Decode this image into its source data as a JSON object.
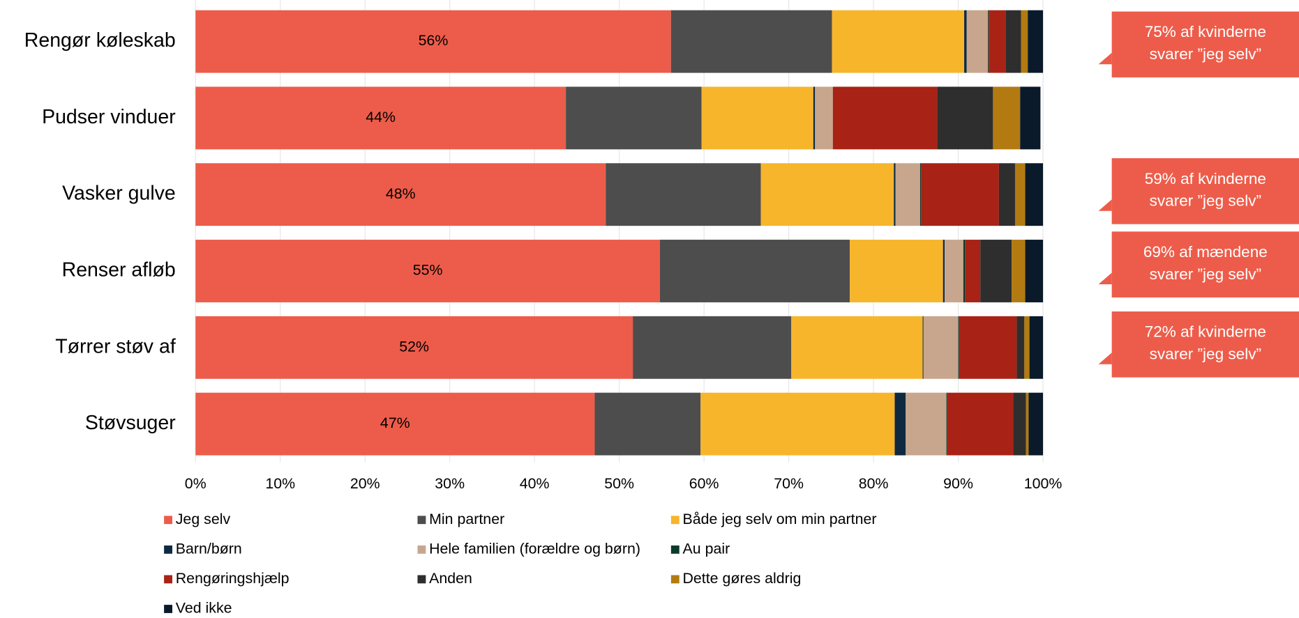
{
  "chart_data": {
    "type": "stacked-bar-horizontal",
    "categories": [
      "Rengør køleskab",
      "Pudser vinduer",
      "Vasker gulve",
      "Renser afløb",
      "Tørrer støv af",
      "Støvsuger"
    ],
    "series": [
      {
        "name": "Jeg selv",
        "color": "#ed5c4a",
        "values": [
          56.1,
          43.7,
          48.4,
          54.8,
          51.6,
          47.1
        ],
        "value_labels": [
          "56%",
          "44%",
          "48%",
          "55%",
          "52%",
          "47%"
        ]
      },
      {
        "name": "Min partner",
        "color": "#4d4d4d",
        "values": [
          19,
          16,
          18.3,
          22.4,
          18.7,
          12.5
        ]
      },
      {
        "name": "Både jeg selv om min partner",
        "color": "#f7b52c",
        "values": [
          15.6,
          13.2,
          15.7,
          11,
          15.5,
          22.9
        ]
      },
      {
        "name": "Barn/børn",
        "color": "#0f2a40",
        "values": [
          0.3,
          0.2,
          0.2,
          0.2,
          0.1,
          1.3
        ]
      },
      {
        "name": "Hele familien (forældre og børn)",
        "color": "#c8a68e",
        "values": [
          2.5,
          2.1,
          2.9,
          2.2,
          4.1,
          4.8
        ]
      },
      {
        "name": "Au pair",
        "color": "#0c3b2e",
        "values": [
          0.1,
          0,
          0.1,
          0.2,
          0.1,
          0.1
        ]
      },
      {
        "name": "Rengøringshjælp",
        "color": "#a82315",
        "values": [
          2,
          12.3,
          9.2,
          1.8,
          6.8,
          7.8
        ]
      },
      {
        "name": "Anden",
        "color": "#2e2e2e",
        "values": [
          1.8,
          6.6,
          1.9,
          3.7,
          0.9,
          1.5
        ]
      },
      {
        "name": "Dette gøres aldrig",
        "color": "#b27a10",
        "values": [
          0.8,
          3.2,
          1.2,
          1.6,
          0.6,
          0.3
        ]
      },
      {
        "name": "Ved ikke",
        "color": "#0a1a2a",
        "values": [
          1.8,
          2.4,
          2.1,
          2.1,
          1.6,
          1.7
        ]
      }
    ],
    "xlim": [
      0,
      100
    ],
    "xticks": [
      {
        "value": 0,
        "label": "0%"
      },
      {
        "value": 10,
        "label": "10%"
      },
      {
        "value": 20,
        "label": "20%"
      },
      {
        "value": 30,
        "label": "30%"
      },
      {
        "value": 40,
        "label": "40%"
      },
      {
        "value": 50,
        "label": "50%"
      },
      {
        "value": 60,
        "label": "60%"
      },
      {
        "value": 70,
        "label": "70%"
      },
      {
        "value": 80,
        "label": "80%"
      },
      {
        "value": 90,
        "label": "90%"
      },
      {
        "value": 100,
        "label": "100%"
      }
    ],
    "grid": true,
    "annotations": [
      {
        "lines": [
          "75% af kvinderne",
          "svarer ”jeg selv”"
        ],
        "color": "#ed5c4a"
      },
      {
        "lines": [
          "59% af kvinderne",
          "svarer ”jeg selv”"
        ],
        "color": "#ed5c4a"
      },
      {
        "lines": [
          "69% af mændene",
          "svarer ”jeg selv”"
        ],
        "color": "#ed5c4a"
      },
      {
        "lines": [
          "72% af kvinderne",
          "svarer ”jeg selv”"
        ],
        "color": "#ed5c4a"
      }
    ]
  }
}
